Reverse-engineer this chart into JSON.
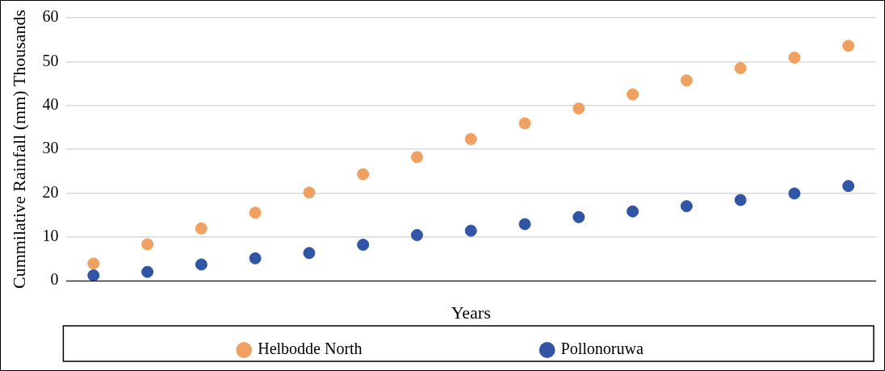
{
  "chart_data": {
    "type": "scatter",
    "xlabel": "Years",
    "ylabel": "Cummilative Rainfall (mm) Thousands",
    "categories": [
      null,
      null,
      null,
      null,
      null,
      null,
      null,
      null,
      null,
      null,
      null,
      null,
      null,
      null,
      null
    ],
    "series": [
      {
        "name": "Helbodde North",
        "color": "#f0a060",
        "values": [
          3.9,
          8.3,
          11.9,
          15.5,
          20.1,
          24.3,
          28.2,
          32.3,
          35.9,
          39.3,
          42.5,
          45.7,
          48.5,
          50.9,
          53.6
        ]
      },
      {
        "name": "Pollonoruwa",
        "color": "#2f55a4",
        "values": [
          1.2,
          2.0,
          3.7,
          5.1,
          6.3,
          8.2,
          10.4,
          11.4,
          12.9,
          14.5,
          15.8,
          17.0,
          18.4,
          19.9,
          21.6
        ]
      }
    ],
    "ylim": [
      0,
      60
    ],
    "yticks": [
      0,
      10,
      20,
      30,
      40,
      50,
      60
    ],
    "grid": "y",
    "legend": "bottom",
    "marker": "circle"
  }
}
